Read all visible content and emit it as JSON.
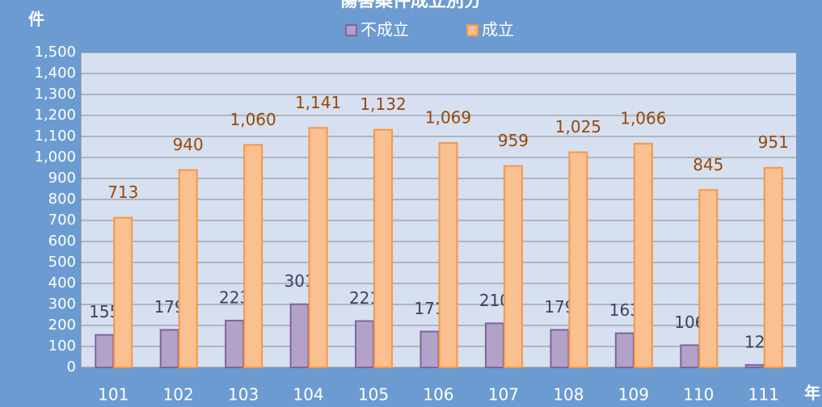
{
  "chart_data": {
    "type": "bar",
    "title": "傷害案件成立別分",
    "y_label": "件",
    "x_label": "年",
    "categories": [
      "101",
      "102",
      "103",
      "104",
      "105",
      "106",
      "107",
      "108",
      "109",
      "110",
      "111"
    ],
    "series": [
      {
        "name": "不成立",
        "color": "#b3a2c7",
        "values": [
          155,
          179,
          223,
          301,
          221,
          171,
          210,
          179,
          163,
          106,
          12
        ]
      },
      {
        "name": "成立",
        "color": "#fac090",
        "values": [
          713,
          940,
          1060,
          1141,
          1132,
          1069,
          959,
          1025,
          1066,
          845,
          951
        ],
        "value_labels": [
          "713",
          "940",
          "1,060",
          "1,141",
          "1,132",
          "1,069",
          "959",
          "1,025",
          "1,066",
          "845",
          "951"
        ]
      }
    ],
    "ylim": [
      0,
      1500
    ],
    "yticks": [
      0,
      100,
      200,
      300,
      400,
      500,
      600,
      700,
      800,
      900,
      {
        "value": 1000,
        "label": "1,000"
      },
      {
        "value": 1100,
        "label": "1,100"
      },
      {
        "value": 1200,
        "label": "1,200"
      },
      {
        "value": 1300,
        "label": "1,300"
      },
      {
        "value": 1400,
        "label": "1,400"
      },
      {
        "value": 1500,
        "label": "1,500"
      }
    ],
    "grid": true,
    "legend": "top"
  }
}
